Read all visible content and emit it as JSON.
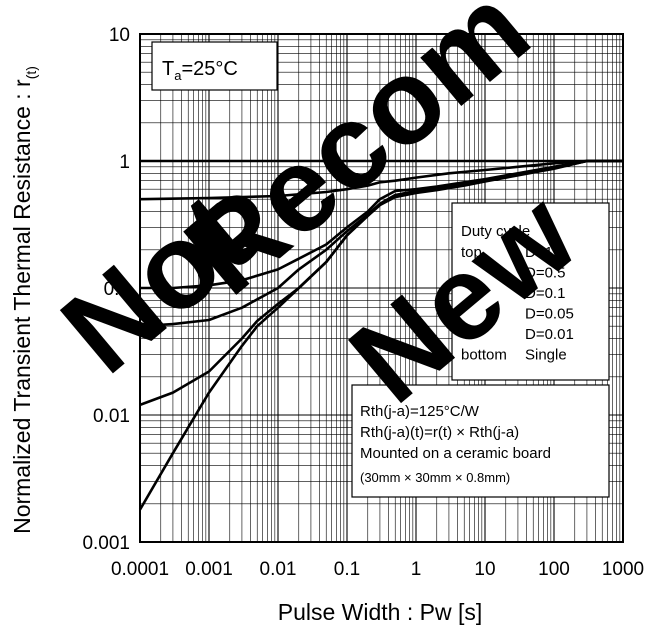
{
  "chart_data": {
    "type": "line",
    "title": "",
    "xlabel": "Pulse Width : Pw [s]",
    "ylabel_main": "Normalized Transient Thermal Resistance : r",
    "ylabel_sub": "(t)",
    "x_scale": "log",
    "y_scale": "log",
    "xlim": [
      0.0001,
      1000
    ],
    "ylim": [
      0.001,
      10
    ],
    "grid": true,
    "x_ticks": [
      {
        "value": 0.0001,
        "label": "0.0001"
      },
      {
        "value": 0.001,
        "label": "0.001"
      },
      {
        "value": 0.01,
        "label": "0.01"
      },
      {
        "value": 0.1,
        "label": "0.1"
      },
      {
        "value": 1,
        "label": "1"
      },
      {
        "value": 10,
        "label": "10"
      },
      {
        "value": 100,
        "label": "100"
      },
      {
        "value": 1000,
        "label": "1000"
      }
    ],
    "y_ticks": [
      {
        "value": 0.001,
        "label": "0.001"
      },
      {
        "value": 0.01,
        "label": "0.01"
      },
      {
        "value": 0.1,
        "label": "0.1"
      },
      {
        "value": 1,
        "label": "1"
      },
      {
        "value": 10,
        "label": "10"
      }
    ],
    "series": [
      {
        "x": [
          0.0001,
          1000
        ],
        "y": [
          1,
          1
        ]
      },
      {
        "x": [
          0.0001,
          0.001,
          0.01,
          0.05,
          0.1,
          0.2,
          0.3,
          0.5,
          1,
          3,
          10,
          30,
          100,
          300,
          1000
        ],
        "y": [
          0.5,
          0.51,
          0.53,
          0.57,
          0.6,
          0.64,
          0.68,
          0.7,
          0.74,
          0.8,
          0.85,
          0.9,
          0.96,
          1.0,
          1.0
        ]
      },
      {
        "x": [
          0.0001,
          0.0003,
          0.001,
          0.003,
          0.01,
          0.02,
          0.05,
          0.1,
          0.2,
          0.3,
          0.5,
          1,
          2,
          5,
          10,
          30,
          100,
          300,
          1000
        ],
        "y": [
          0.1,
          0.1,
          0.105,
          0.115,
          0.14,
          0.17,
          0.22,
          0.3,
          0.4,
          0.5,
          0.58,
          0.6,
          0.63,
          0.68,
          0.72,
          0.8,
          0.9,
          1.0,
          1.0
        ]
      },
      {
        "x": [
          0.0001,
          0.0003,
          0.001,
          0.003,
          0.01,
          0.02,
          0.05,
          0.1,
          0.2,
          0.3,
          0.5,
          1,
          2,
          5,
          10,
          30,
          100,
          300,
          1000
        ],
        "y": [
          0.05,
          0.052,
          0.056,
          0.07,
          0.1,
          0.14,
          0.2,
          0.28,
          0.38,
          0.46,
          0.54,
          0.58,
          0.61,
          0.66,
          0.71,
          0.79,
          0.89,
          1.0,
          1.0
        ]
      },
      {
        "x": [
          0.0001,
          0.0003,
          0.001,
          0.003,
          0.005,
          0.01,
          0.02,
          0.05,
          0.1,
          0.2,
          0.3,
          0.5,
          1,
          2,
          5,
          10,
          30,
          100,
          300,
          1000
        ],
        "y": [
          0.012,
          0.015,
          0.022,
          0.04,
          0.055,
          0.075,
          0.1,
          0.16,
          0.26,
          0.37,
          0.45,
          0.53,
          0.57,
          0.6,
          0.65,
          0.7,
          0.78,
          0.88,
          1.0,
          1.0
        ]
      },
      {
        "x": [
          0.0001,
          0.0003,
          0.001,
          0.003,
          0.005,
          0.01,
          0.02,
          0.05,
          0.1,
          0.2,
          0.3,
          0.5,
          1,
          2,
          5,
          10,
          30,
          100,
          300,
          1000
        ],
        "y": [
          0.0018,
          0.005,
          0.015,
          0.035,
          0.05,
          0.07,
          0.1,
          0.16,
          0.26,
          0.37,
          0.45,
          0.52,
          0.56,
          0.59,
          0.64,
          0.69,
          0.77,
          0.87,
          1.0,
          1.0
        ]
      }
    ],
    "condition_box": {
      "prefix": "T",
      "sub": "a",
      "suffix": "=25°C"
    },
    "legend": {
      "placement": "right",
      "title": "Duty cycle",
      "rows": [
        {
          "prefix": "top",
          "label": "D=1"
        },
        {
          "prefix": "",
          "label": "D=0.5"
        },
        {
          "prefix": "",
          "label": "D=0.1"
        },
        {
          "prefix": "",
          "label": "D=0.05"
        },
        {
          "prefix": "",
          "label": "D=0.01"
        },
        {
          "prefix": "bottom",
          "label": "Single"
        }
      ]
    },
    "note_box": {
      "lines": [
        "Rth(j-a)=125°C/W",
        "Rth(j-a)(t)=r(t) × Rth(j-a)",
        "Mounted on a ceramic board"
      ],
      "small_line": "(30mm × 30mm × 0.8mm)"
    },
    "watermark": [
      "Not",
      "Recom",
      "New"
    ]
  }
}
